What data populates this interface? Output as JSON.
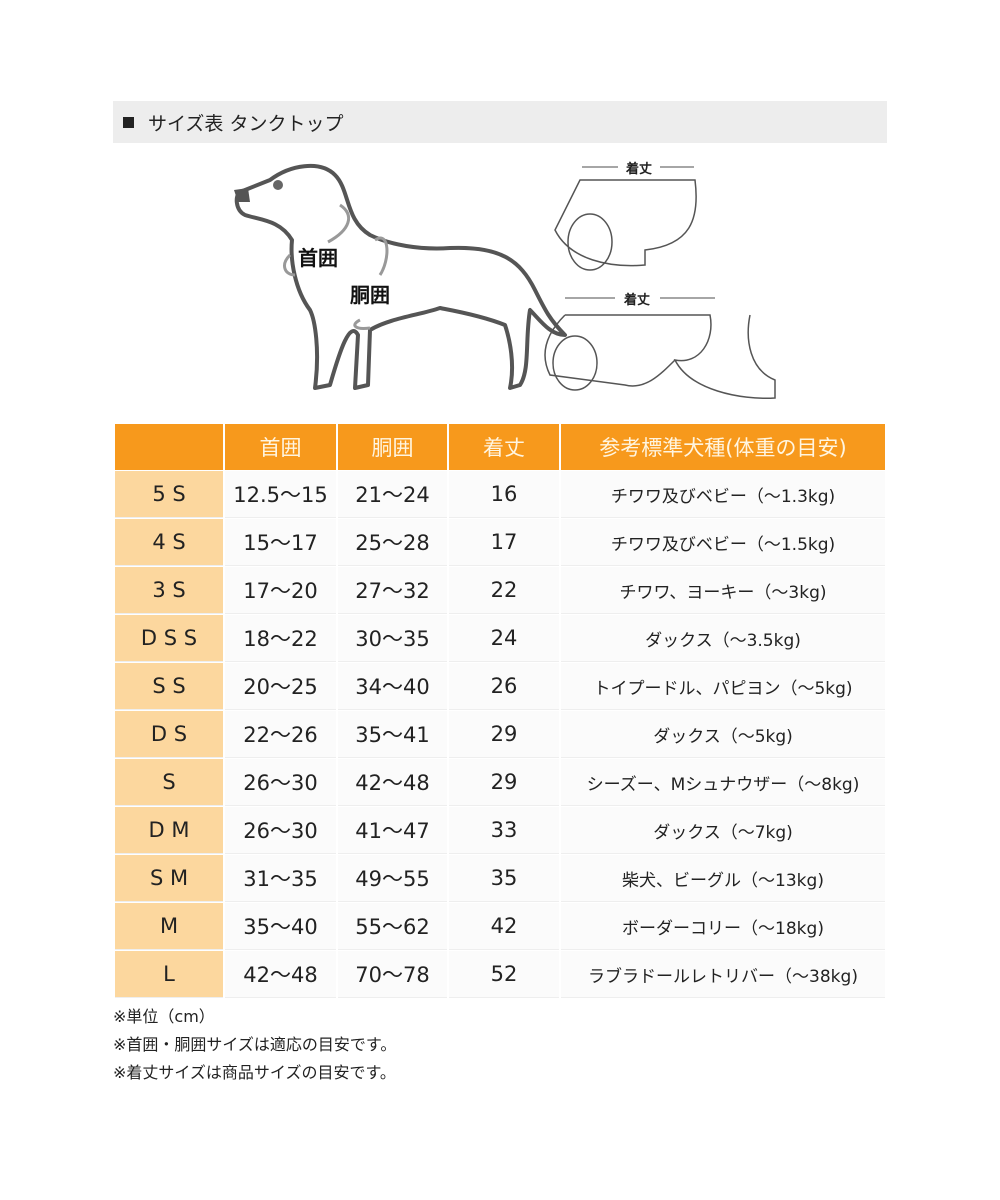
{
  "title": "サイズ表 タンクトップ",
  "illustration": {
    "neck_label": "首囲",
    "body_label": "胴囲",
    "length_label_1": "着丈",
    "length_label_2": "着丈"
  },
  "table": {
    "headers": [
      "",
      "首囲",
      "胴囲",
      "着丈",
      "参考標準犬種(体重の目安)"
    ],
    "rows": [
      [
        "5 S",
        "12.5～15",
        "21～24",
        "16",
        "チワワ及びベビー（～1.3kg)"
      ],
      [
        "4 S",
        "15～17",
        "25～28",
        "17",
        "チワワ及びベビー（～1.5kg)"
      ],
      [
        "3 S",
        "17～20",
        "27～32",
        "22",
        "チワワ、ヨーキー（～3kg)"
      ],
      [
        "D S S",
        "18～22",
        "30～35",
        "24",
        "ダックス（～3.5kg)"
      ],
      [
        "S S",
        "20～25",
        "34～40",
        "26",
        "トイプードル、パピヨン（～5kg)"
      ],
      [
        "D S",
        "22～26",
        "35～41",
        "29",
        "ダックス（～5kg)"
      ],
      [
        "S",
        "26～30",
        "42～48",
        "29",
        "シーズー、Mシュナウザー（～8kg)"
      ],
      [
        "D M",
        "26～30",
        "41～47",
        "33",
        "ダックス（～7kg)"
      ],
      [
        "S M",
        "31～35",
        "49～55",
        "35",
        "柴犬、ビーグル（～13kg)"
      ],
      [
        "M",
        "35～40",
        "55～62",
        "42",
        "ボーダーコリー（～18kg)"
      ],
      [
        "L",
        "42～48",
        "70～78",
        "52",
        "ラブラドールレトリバー（～38kg)"
      ]
    ]
  },
  "notes": [
    "※単位（cm）",
    "※首囲・胴囲サイズは適応の目安です。",
    "※着丈サイズは商品サイズの目安です。"
  ],
  "colors": {
    "header": "#f7991c",
    "size_column": "#fcd79e",
    "title_bar": "#ededed"
  }
}
